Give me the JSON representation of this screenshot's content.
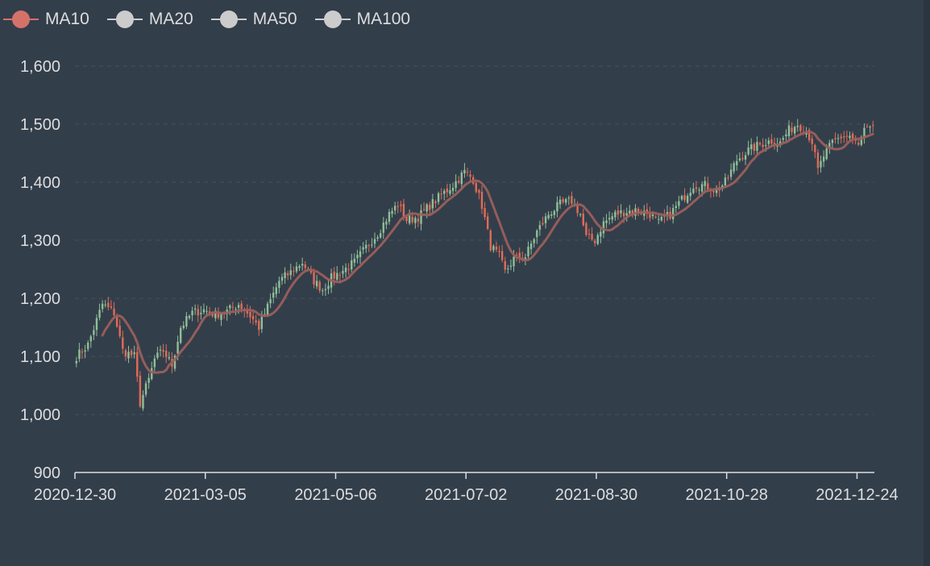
{
  "legend": [
    {
      "label": "MA10",
      "color": "#d4726a",
      "active": true
    },
    {
      "label": "MA20",
      "color": "#cccccc",
      "active": false
    },
    {
      "label": "MA50",
      "color": "#cccccc",
      "active": false
    },
    {
      "label": "MA100",
      "color": "#cccccc",
      "active": false
    }
  ],
  "chart_data": {
    "type": "candlestick",
    "title": "",
    "xlabel": "",
    "ylabel": "",
    "ylim": [
      900,
      1600
    ],
    "yticks": [
      900,
      1000,
      1100,
      1200,
      1300,
      1400,
      1500,
      1600
    ],
    "ytick_labels": [
      "900",
      "1,000",
      "1,100",
      "1,200",
      "1,300",
      "1,400",
      "1,500",
      "1,600"
    ],
    "xtick_labels": [
      "2020-12-30",
      "2021-03-05",
      "2021-05-06",
      "2021-07-02",
      "2021-08-30",
      "2021-10-28",
      "2021-12-24"
    ],
    "xtick_index": [
      0,
      45,
      90,
      135,
      180,
      225,
      270
    ],
    "num_days": 276,
    "grid": true,
    "up_color": "#8fbf98",
    "down_color": "#e06c57",
    "ma_color": "#9b5f5b",
    "ma_label": "MA10",
    "ma_period": 10,
    "close_anchors": [
      [
        0,
        1100
      ],
      [
        4,
        1120
      ],
      [
        9,
        1190
      ],
      [
        13,
        1175
      ],
      [
        16,
        1110
      ],
      [
        20,
        1100
      ],
      [
        22,
        1020
      ],
      [
        25,
        1060
      ],
      [
        27,
        1095
      ],
      [
        30,
        1110
      ],
      [
        33,
        1085
      ],
      [
        36,
        1150
      ],
      [
        40,
        1175
      ],
      [
        44,
        1180
      ],
      [
        48,
        1172
      ],
      [
        52,
        1178
      ],
      [
        56,
        1190
      ],
      [
        60,
        1170
      ],
      [
        63,
        1150
      ],
      [
        66,
        1185
      ],
      [
        70,
        1230
      ],
      [
        74,
        1245
      ],
      [
        78,
        1262
      ],
      [
        82,
        1230
      ],
      [
        85,
        1215
      ],
      [
        88,
        1235
      ],
      [
        92,
        1248
      ],
      [
        96,
        1262
      ],
      [
        100,
        1288
      ],
      [
        104,
        1312
      ],
      [
        108,
        1345
      ],
      [
        111,
        1362
      ],
      [
        114,
        1335
      ],
      [
        118,
        1340
      ],
      [
        122,
        1360
      ],
      [
        126,
        1378
      ],
      [
        130,
        1395
      ],
      [
        134,
        1418
      ],
      [
        137,
        1405
      ],
      [
        140,
        1360
      ],
      [
        143,
        1290
      ],
      [
        146,
        1272
      ],
      [
        148,
        1245
      ],
      [
        151,
        1268
      ],
      [
        155,
        1272
      ],
      [
        159,
        1315
      ],
      [
        163,
        1345
      ],
      [
        167,
        1362
      ],
      [
        171,
        1368
      ],
      [
        174,
        1345
      ],
      [
        176,
        1305
      ],
      [
        179,
        1300
      ],
      [
        182,
        1330
      ],
      [
        186,
        1345
      ],
      [
        190,
        1350
      ],
      [
        194,
        1352
      ],
      [
        198,
        1345
      ],
      [
        201,
        1330
      ],
      [
        205,
        1345
      ],
      [
        209,
        1370
      ],
      [
        213,
        1395
      ],
      [
        217,
        1395
      ],
      [
        221,
        1385
      ],
      [
        224,
        1400
      ],
      [
        228,
        1438
      ],
      [
        232,
        1455
      ],
      [
        236,
        1465
      ],
      [
        240,
        1472
      ],
      [
        243,
        1468
      ],
      [
        246,
        1490
      ],
      [
        249,
        1500
      ],
      [
        252,
        1488
      ],
      [
        254,
        1470
      ],
      [
        256,
        1420
      ],
      [
        258,
        1445
      ],
      [
        261,
        1468
      ],
      [
        264,
        1478
      ],
      [
        267,
        1480
      ],
      [
        270,
        1462
      ],
      [
        272,
        1490
      ],
      [
        275,
        1490
      ]
    ]
  }
}
